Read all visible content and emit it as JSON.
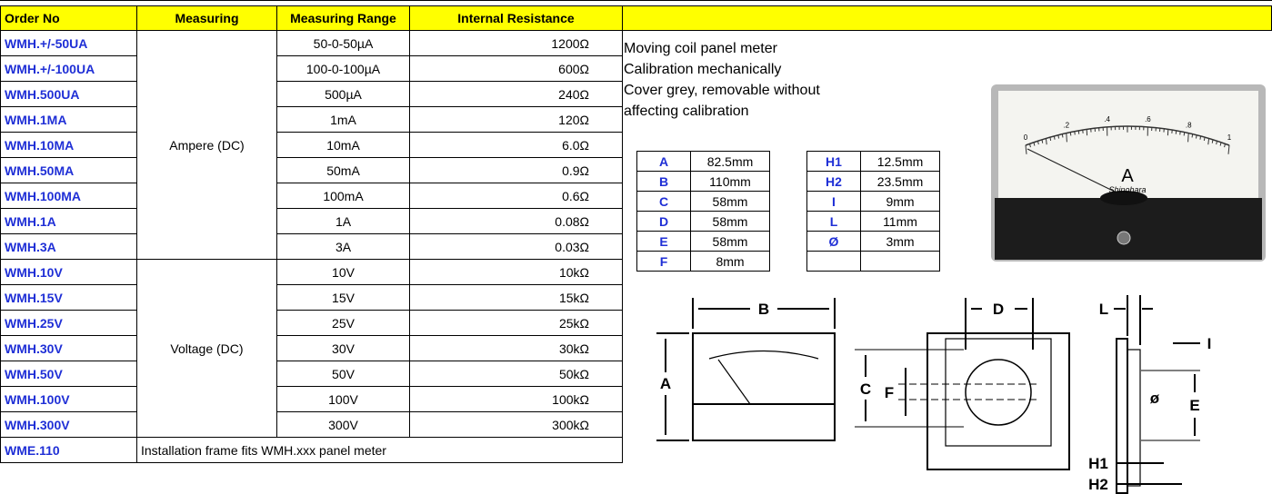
{
  "table": {
    "header": [
      "Order No",
      "Measuring",
      "Measuring Range",
      "Internal Resistance"
    ],
    "sections": [
      {
        "measuring": "Ampere (DC)",
        "rows": [
          [
            "WMH.+/-50UA",
            "50-0-50µA",
            "1200Ω"
          ],
          [
            "WMH.+/-100UA",
            "100-0-100µA",
            "600Ω"
          ],
          [
            "WMH.500UA",
            "500µA",
            "240Ω"
          ],
          [
            "WMH.1MA",
            "1mA",
            "120Ω"
          ],
          [
            "WMH.10MA",
            "10mA",
            "6.0Ω"
          ],
          [
            "WMH.50MA",
            "50mA",
            "0.9Ω"
          ],
          [
            "WMH.100MA",
            "100mA",
            "0.6Ω"
          ],
          [
            "WMH.1A",
            "1A",
            "0.08Ω"
          ],
          [
            "WMH.3A",
            "3A",
            "0.03Ω"
          ]
        ]
      },
      {
        "measuring": "Voltage (DC)",
        "rows": [
          [
            "WMH.10V",
            "10V",
            "10kΩ"
          ],
          [
            "WMH.15V",
            "15V",
            "15kΩ"
          ],
          [
            "WMH.25V",
            "25V",
            "25kΩ"
          ],
          [
            "WMH.30V",
            "30V",
            "30kΩ"
          ],
          [
            "WMH.50V",
            "50V",
            "50kΩ"
          ],
          [
            "WMH.100V",
            "100V",
            "100kΩ"
          ],
          [
            "WMH.300V",
            "300V",
            "300kΩ"
          ]
        ]
      }
    ],
    "footer": {
      "order": "WME.110",
      "note": "Installation frame fits WMH.xxx panel meter"
    }
  },
  "description": [
    "Moving coil panel meter",
    "Calibration mechanically",
    "Cover grey, removable without",
    "affecting calibration"
  ],
  "dimensions": {
    "left": [
      [
        "A",
        "82.5mm"
      ],
      [
        "B",
        "110mm"
      ],
      [
        "C",
        "58mm"
      ],
      [
        "D",
        "58mm"
      ],
      [
        "E",
        "58mm"
      ],
      [
        "F",
        "8mm"
      ]
    ],
    "right": [
      [
        "H1",
        "12.5mm"
      ],
      [
        "H2",
        "23.5mm"
      ],
      [
        "I",
        "9mm"
      ],
      [
        "L",
        "11mm"
      ],
      [
        "Ø",
        "3mm"
      ]
    ]
  },
  "meter_photo": {
    "scale": [
      "0",
      ".2",
      ".4",
      ".6",
      ".8",
      "1"
    ],
    "unit": "A",
    "brand": "Shinohara"
  },
  "drawing_labels": {
    "B": "B",
    "D": "D",
    "L": "L",
    "A": "A",
    "C": "C",
    "F": "F",
    "I": "I",
    "phi": "ø",
    "E": "E",
    "H1": "H1",
    "H2": "H2"
  }
}
